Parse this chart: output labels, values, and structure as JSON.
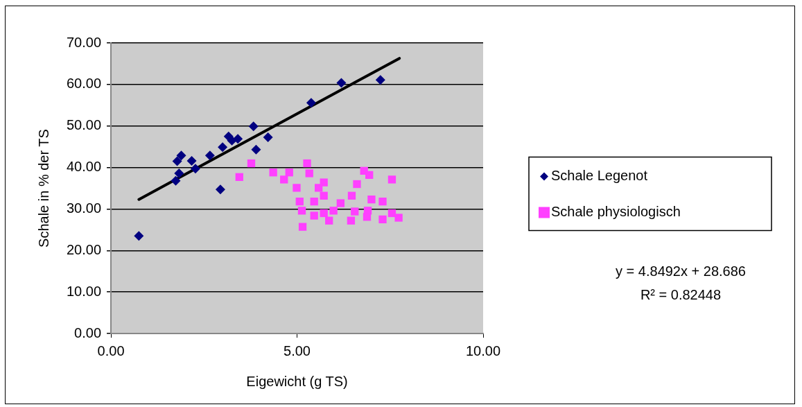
{
  "chart_data": {
    "type": "scatter",
    "xlabel": "Eigewicht (g TS)",
    "ylabel": "Schale in % der TS",
    "xlim": [
      0,
      10
    ],
    "xticks": [
      {
        "value": 0,
        "label": "0.00"
      },
      {
        "value": 5,
        "label": "5.00"
      },
      {
        "value": 10,
        "label": "10.00"
      }
    ],
    "ylim": [
      0,
      70
    ],
    "yticks": [
      {
        "value": 0,
        "label": "0.00"
      },
      {
        "value": 10,
        "label": "10.00"
      },
      {
        "value": 20,
        "label": "20.00"
      },
      {
        "value": 30,
        "label": "30.00"
      },
      {
        "value": 40,
        "label": "40.00"
      },
      {
        "value": 50,
        "label": "50.00"
      },
      {
        "value": 60,
        "label": "60.00"
      },
      {
        "value": 70,
        "label": "70.00"
      }
    ],
    "grid": "y",
    "legend": "right",
    "series": [
      {
        "name": "Schale Legenot",
        "color": "#000080",
        "marker": "diamond",
        "x": [
          0.75,
          1.74,
          1.78,
          1.83,
          1.89,
          2.17,
          2.27,
          2.66,
          2.94,
          3.0,
          3.16,
          3.25,
          3.41,
          3.83,
          3.9,
          4.22,
          5.38,
          6.19,
          7.24
        ],
        "values": [
          23.5,
          36.8,
          41.5,
          38.6,
          42.9,
          41.6,
          39.7,
          42.9,
          34.7,
          44.9,
          47.5,
          46.5,
          46.9,
          49.9,
          44.3,
          47.3,
          55.6,
          60.4,
          61.1
        ]
      },
      {
        "name": "Schale physiologisch",
        "color": "#ff40ff",
        "marker": "square",
        "x": [
          3.77,
          3.45,
          4.36,
          4.79,
          5.27,
          5.33,
          4.65,
          4.99,
          5.72,
          6.8,
          6.94,
          7.55,
          6.61,
          6.47,
          5.07,
          5.13,
          5.15,
          5.46,
          5.46,
          5.72,
          5.86,
          5.98,
          6.17,
          6.45,
          6.55,
          6.9,
          7.0,
          7.3,
          7.3,
          7.55,
          7.73,
          5.58,
          5.72,
          6.88
        ],
        "values": [
          41.0,
          37.7,
          38.8,
          38.8,
          41.0,
          38.6,
          37.1,
          35.1,
          36.4,
          39.2,
          38.2,
          37.1,
          36.0,
          33.2,
          31.8,
          29.6,
          25.7,
          31.8,
          28.4,
          33.2,
          27.2,
          29.6,
          31.4,
          27.2,
          29.4,
          29.6,
          32.3,
          31.8,
          27.5,
          29.0,
          27.9,
          35.1,
          29.0,
          28.1
        ]
      },
      {
        "type": "line",
        "color": "#000000",
        "marker": "none",
        "x": [
          0.75,
          7.75
        ],
        "values": [
          32.3,
          66.3
        ]
      }
    ],
    "annotations": [
      "y = 4.8492x + 28.686",
      "R² = 0.82448"
    ]
  }
}
